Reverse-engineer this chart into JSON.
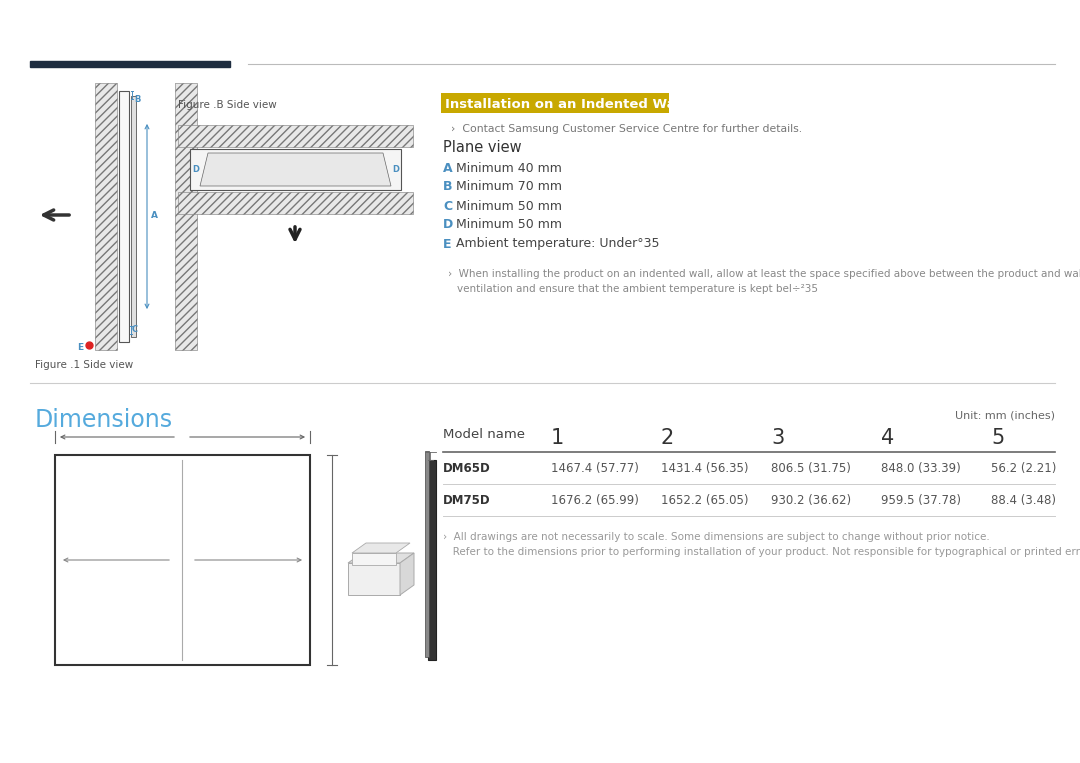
{
  "bg_color": "#ffffff",
  "header_bar1_color": "#1e2d40",
  "title_installation": "Installation on an Indented Wall",
  "title_installation_bg": "#c8a800",
  "title_installation_color": "#ffffff",
  "contact_text": "Contact Samsung Customer Service Centre for further details.",
  "plane_view_title": "Plane view",
  "plane_items": [
    {
      "label": "A",
      "text": "Minimum 40 mm"
    },
    {
      "label": "B",
      "text": "Minimum 70 mm"
    },
    {
      "label": "C",
      "text": "Minimum 50 mm"
    },
    {
      "label": "D",
      "text": "Minimum 50 mm"
    },
    {
      "label": "E",
      "text": "Ambient temperature: Under°35"
    }
  ],
  "label_color": "#4a8fc0",
  "note_text1": "When installing the product on an indented wall, allow at least the space specified above between the product and wall for",
  "note_text2": "ventilation and ensure that the ambient temperature is kept bel÷²35",
  "dimensions_title": "Dimensions",
  "dimensions_color": "#55aadd",
  "unit_text": "Unit: mm (inches)",
  "table_headers": [
    "Model name",
    "1",
    "2",
    "3",
    "4",
    "5"
  ],
  "table_rows": [
    [
      "DM65D",
      "1467.4 (57.77)",
      "1431.4 (56.35)",
      "806.5 (31.75)",
      "848.0 (33.39)",
      "56.2 (2.21)"
    ],
    [
      "DM75D",
      "1676.2 (65.99)",
      "1652.2 (65.05)",
      "930.2 (36.62)",
      "959.5 (37.78)",
      "88.4 (3.48)"
    ]
  ],
  "footnote1": "›  All drawings are not necessarily to scale. Some dimensions are subject to change without prior notice.",
  "footnote2": "   Refer to the dimensions prior to performing installation of your product. Not responsible for typographical or printed errors.",
  "fig_b_label": "Figure .B Side view",
  "fig_1_label": "Figure .1 Side view"
}
